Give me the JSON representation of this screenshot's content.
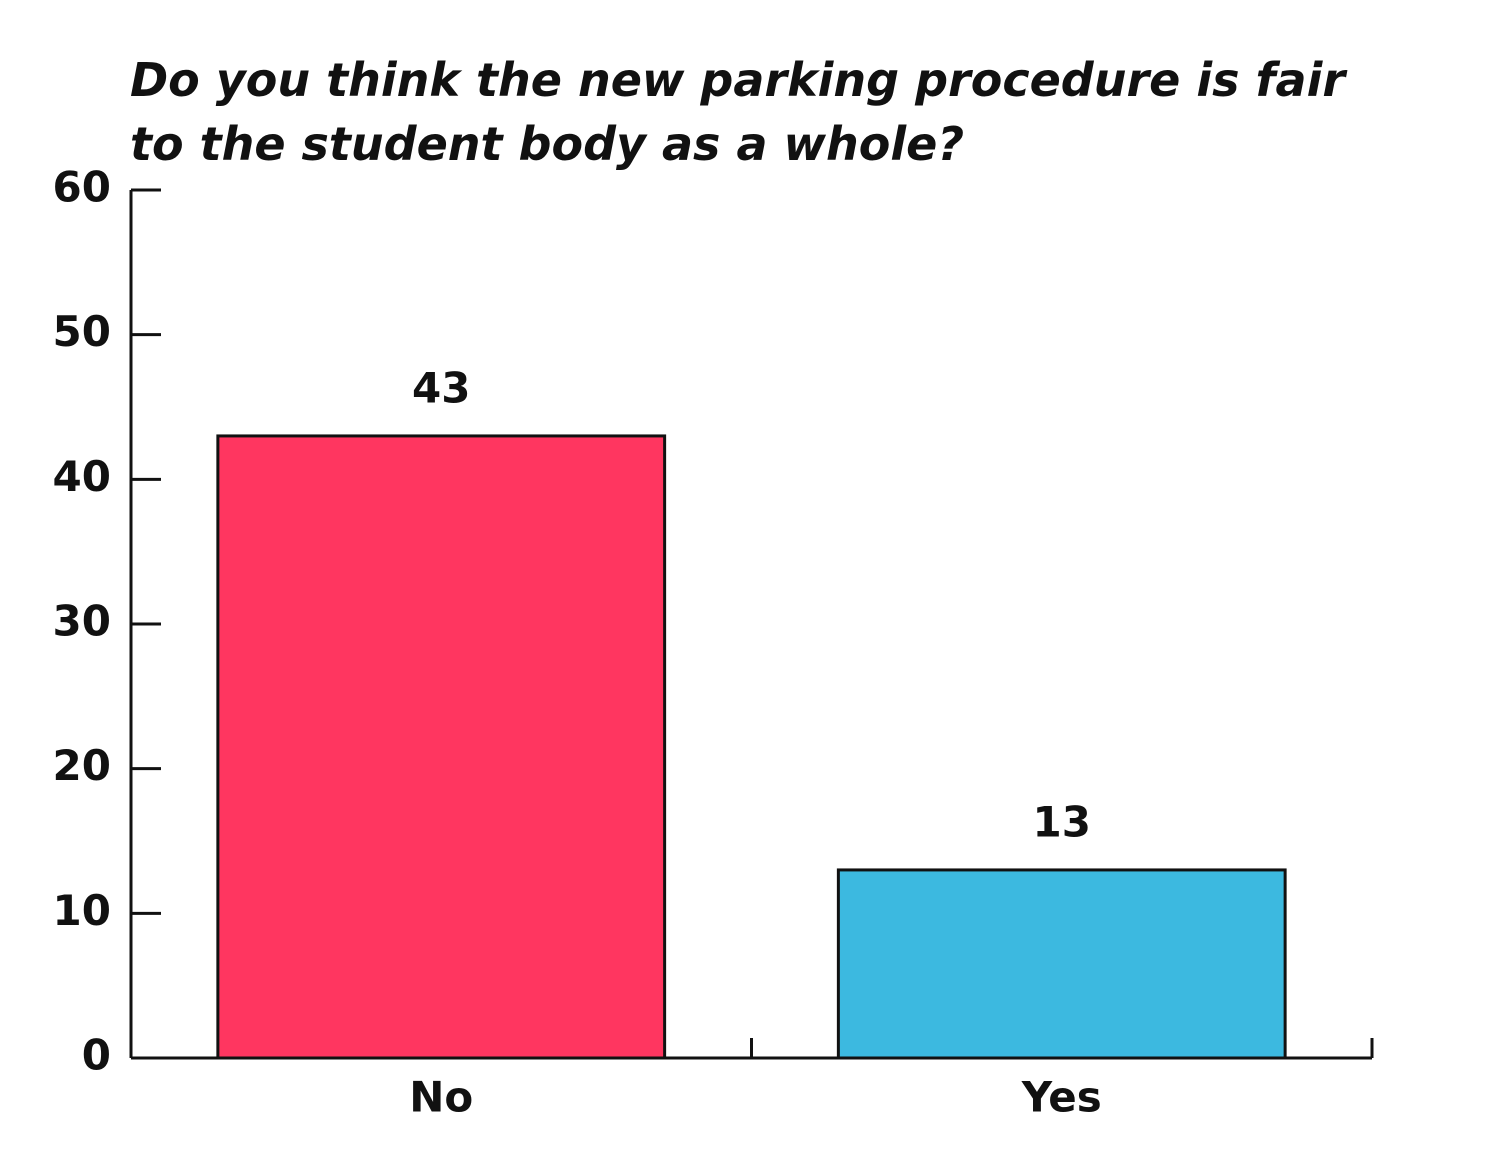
{
  "chart_data": {
    "type": "bar",
    "title": "Do you think the new parking procedure is fair to the student body as a whole?",
    "categories": [
      "No",
      "Yes"
    ],
    "values": [
      43,
      13
    ],
    "colors": [
      "#ff3660",
      "#3cb9e0"
    ],
    "ylim": [
      0,
      60
    ],
    "yticks": [
      0,
      10,
      20,
      30,
      40,
      50,
      60
    ]
  }
}
